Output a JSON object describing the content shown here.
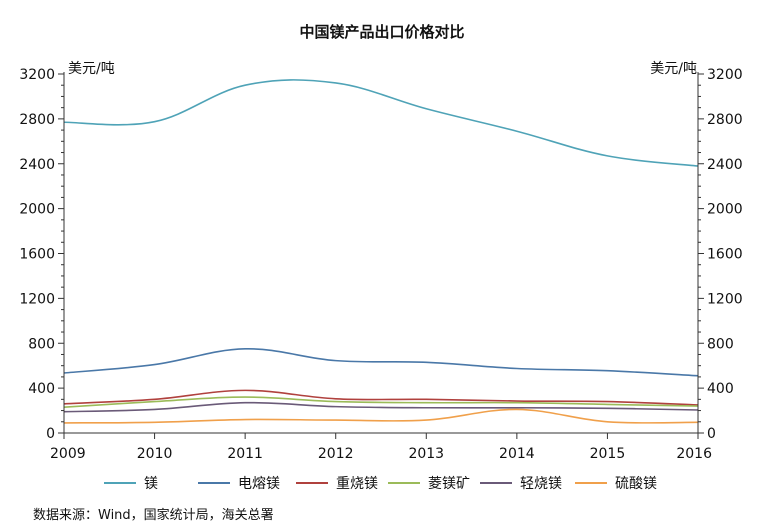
{
  "chart_data": {
    "type": "line",
    "title": "中国镁产品出口价格对比",
    "y_unit_left": "美元/吨",
    "y_unit_right": "美元/吨",
    "source": "数据来源：Wind，国家统计局，海关总署",
    "x": [
      2009,
      2010,
      2011,
      2012,
      2013,
      2014,
      2015,
      2016
    ],
    "ylim": [
      0,
      3200
    ],
    "yticks": [
      0,
      400,
      800,
      1200,
      1600,
      2000,
      2400,
      2800,
      3200
    ],
    "grid": false,
    "legend_position": "bottom",
    "series": [
      {
        "name": "镁",
        "color": "#4fa3b7",
        "values": [
          2770,
          2775,
          3100,
          3120,
          2890,
          2690,
          2470,
          2380
        ]
      },
      {
        "name": "电熔镁",
        "color": "#4a78a8",
        "values": [
          535,
          610,
          750,
          645,
          630,
          575,
          555,
          510
        ]
      },
      {
        "name": "重烧镁",
        "color": "#b0413e",
        "values": [
          260,
          300,
          380,
          305,
          300,
          285,
          280,
          250
        ]
      },
      {
        "name": "菱镁矿",
        "color": "#9bbb59",
        "values": [
          230,
          280,
          320,
          280,
          270,
          270,
          255,
          240
        ]
      },
      {
        "name": "轻烧镁",
        "color": "#6a5a78",
        "values": [
          190,
          210,
          270,
          235,
          225,
          225,
          220,
          205
        ]
      },
      {
        "name": "硫酸镁",
        "color": "#f0a04b",
        "values": [
          90,
          95,
          120,
          115,
          115,
          210,
          100,
          95
        ]
      }
    ]
  }
}
